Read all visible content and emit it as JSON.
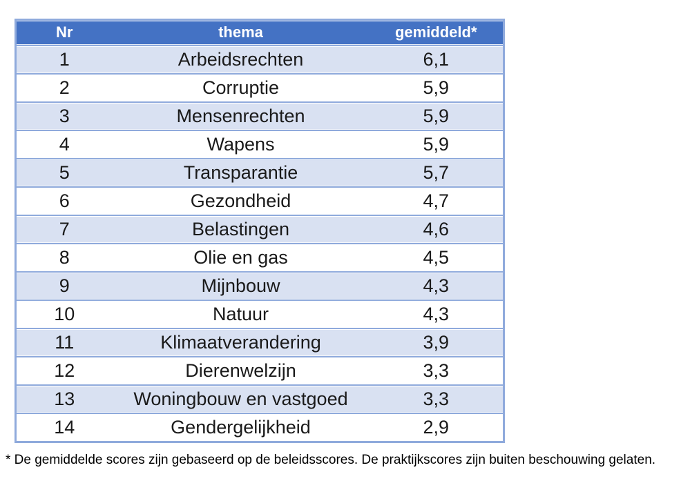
{
  "colors": {
    "header_bg": "#4472C4",
    "header_text": "#FFFFFF",
    "band_row_bg": "#D9E1F2",
    "plain_row_bg": "#FFFFFF",
    "border": "#8FAADC",
    "text": "#1A1A1A"
  },
  "table": {
    "columns": [
      {
        "key": "nr",
        "label": "Nr"
      },
      {
        "key": "thema",
        "label": "thema"
      },
      {
        "key": "gemiddeld",
        "label": "gemiddeld*"
      }
    ],
    "rows": [
      {
        "nr": "1",
        "thema": "Arbeidsrechten",
        "gemiddeld": "6,1"
      },
      {
        "nr": "2",
        "thema": "Corruptie",
        "gemiddeld": "5,9"
      },
      {
        "nr": "3",
        "thema": "Mensenrechten",
        "gemiddeld": "5,9"
      },
      {
        "nr": "4",
        "thema": "Wapens",
        "gemiddeld": "5,9"
      },
      {
        "nr": "5",
        "thema": "Transparantie",
        "gemiddeld": "5,7"
      },
      {
        "nr": "6",
        "thema": "Gezondheid",
        "gemiddeld": "4,7"
      },
      {
        "nr": "7",
        "thema": "Belastingen",
        "gemiddeld": "4,6"
      },
      {
        "nr": "8",
        "thema": "Olie en gas",
        "gemiddeld": "4,5"
      },
      {
        "nr": "9",
        "thema": "Mijnbouw",
        "gemiddeld": "4,3"
      },
      {
        "nr": "10",
        "thema": "Natuur",
        "gemiddeld": "4,3"
      },
      {
        "nr": "11",
        "thema": "Klimaatverandering",
        "gemiddeld": "3,9"
      },
      {
        "nr": "12",
        "thema": "Dierenwelzijn",
        "gemiddeld": "3,3"
      },
      {
        "nr": "13",
        "thema": "Woningbouw en vastgoed",
        "gemiddeld": "3,3"
      },
      {
        "nr": "14",
        "thema": "Gendergelijkheid",
        "gemiddeld": "2,9"
      }
    ]
  },
  "footnote": "* De gemiddelde scores zijn gebaseerd op de beleidsscores. De praktijkscores zijn buiten beschouwing gelaten.",
  "chart_data": {
    "type": "table",
    "columns": [
      "Nr",
      "thema",
      "gemiddeld*"
    ],
    "rows": [
      [
        1,
        "Arbeidsrechten",
        6.1
      ],
      [
        2,
        "Corruptie",
        5.9
      ],
      [
        3,
        "Mensenrechten",
        5.9
      ],
      [
        4,
        "Wapens",
        5.9
      ],
      [
        5,
        "Transparantie",
        5.7
      ],
      [
        6,
        "Gezondheid",
        4.7
      ],
      [
        7,
        "Belastingen",
        4.6
      ],
      [
        8,
        "Olie en gas",
        4.5
      ],
      [
        9,
        "Mijnbouw",
        4.3
      ],
      [
        10,
        "Natuur",
        4.3
      ],
      [
        11,
        "Klimaatverandering",
        3.9
      ],
      [
        12,
        "Dierenwelzijn",
        3.3
      ],
      [
        13,
        "Woningbouw en vastgoed",
        3.3
      ],
      [
        14,
        "Gendergelijkheid",
        2.9
      ]
    ],
    "footnote": "* De gemiddelde scores zijn gebaseerd op de beleidsscores. De praktijkscores zijn buiten beschouwing gelaten."
  }
}
